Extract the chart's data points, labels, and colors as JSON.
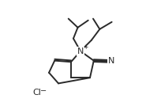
{
  "bg_color": "#ffffff",
  "line_color": "#2a2a2a",
  "line_width": 1.4,
  "font_size_atom": 8.0,
  "font_size_charge": 5.5,
  "Nx": 0.5,
  "Ny": 0.535,
  "Cl_label": "Cl",
  "N_label": "N",
  "CN_label": "N"
}
